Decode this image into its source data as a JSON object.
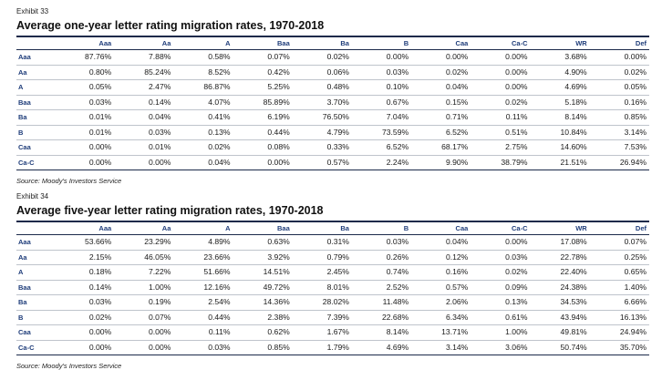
{
  "columns": [
    "",
    "Aaa",
    "Aa",
    "A",
    "Baa",
    "Ba",
    "B",
    "Caa",
    "Ca-C",
    "WR",
    "Def"
  ],
  "exhibit1": {
    "label": "Exhibit 33",
    "title": "Average one-year letter rating migration rates, 1970-2018",
    "rows": [
      [
        "Aaa",
        "87.76%",
        "7.88%",
        "0.58%",
        "0.07%",
        "0.02%",
        "0.00%",
        "0.00%",
        "0.00%",
        "3.68%",
        "0.00%"
      ],
      [
        "Aa",
        "0.80%",
        "85.24%",
        "8.52%",
        "0.42%",
        "0.06%",
        "0.03%",
        "0.02%",
        "0.00%",
        "4.90%",
        "0.02%"
      ],
      [
        "A",
        "0.05%",
        "2.47%",
        "86.87%",
        "5.25%",
        "0.48%",
        "0.10%",
        "0.04%",
        "0.00%",
        "4.69%",
        "0.05%"
      ],
      [
        "Baa",
        "0.03%",
        "0.14%",
        "4.07%",
        "85.89%",
        "3.70%",
        "0.67%",
        "0.15%",
        "0.02%",
        "5.18%",
        "0.16%"
      ],
      [
        "Ba",
        "0.01%",
        "0.04%",
        "0.41%",
        "6.19%",
        "76.50%",
        "7.04%",
        "0.71%",
        "0.11%",
        "8.14%",
        "0.85%"
      ],
      [
        "B",
        "0.01%",
        "0.03%",
        "0.13%",
        "0.44%",
        "4.79%",
        "73.59%",
        "6.52%",
        "0.51%",
        "10.84%",
        "3.14%"
      ],
      [
        "Caa",
        "0.00%",
        "0.01%",
        "0.02%",
        "0.08%",
        "0.33%",
        "6.52%",
        "68.17%",
        "2.75%",
        "14.60%",
        "7.53%"
      ],
      [
        "Ca-C",
        "0.00%",
        "0.00%",
        "0.04%",
        "0.00%",
        "0.57%",
        "2.24%",
        "9.90%",
        "38.79%",
        "21.51%",
        "26.94%"
      ]
    ],
    "source": "Source: Moody's Investors Service"
  },
  "exhibit2": {
    "label": "Exhibit 34",
    "title": "Average five-year letter rating migration rates, 1970-2018",
    "rows": [
      [
        "Aaa",
        "53.66%",
        "23.29%",
        "4.89%",
        "0.63%",
        "0.31%",
        "0.03%",
        "0.04%",
        "0.00%",
        "17.08%",
        "0.07%"
      ],
      [
        "Aa",
        "2.15%",
        "46.05%",
        "23.66%",
        "3.92%",
        "0.79%",
        "0.26%",
        "0.12%",
        "0.03%",
        "22.78%",
        "0.25%"
      ],
      [
        "A",
        "0.18%",
        "7.22%",
        "51.66%",
        "14.51%",
        "2.45%",
        "0.74%",
        "0.16%",
        "0.02%",
        "22.40%",
        "0.65%"
      ],
      [
        "Baa",
        "0.14%",
        "1.00%",
        "12.16%",
        "49.72%",
        "8.01%",
        "2.52%",
        "0.57%",
        "0.09%",
        "24.38%",
        "1.40%"
      ],
      [
        "Ba",
        "0.03%",
        "0.19%",
        "2.54%",
        "14.36%",
        "28.02%",
        "11.48%",
        "2.06%",
        "0.13%",
        "34.53%",
        "6.66%"
      ],
      [
        "B",
        "0.02%",
        "0.07%",
        "0.44%",
        "2.38%",
        "7.39%",
        "22.68%",
        "6.34%",
        "0.61%",
        "43.94%",
        "16.13%"
      ],
      [
        "Caa",
        "0.00%",
        "0.00%",
        "0.11%",
        "0.62%",
        "1.67%",
        "8.14%",
        "13.71%",
        "1.00%",
        "49.81%",
        "24.94%"
      ],
      [
        "Ca-C",
        "0.00%",
        "0.00%",
        "0.03%",
        "0.85%",
        "1.79%",
        "4.69%",
        "3.14%",
        "3.06%",
        "50.74%",
        "35.70%"
      ]
    ],
    "source": "Source: Moody's Investors Service"
  }
}
